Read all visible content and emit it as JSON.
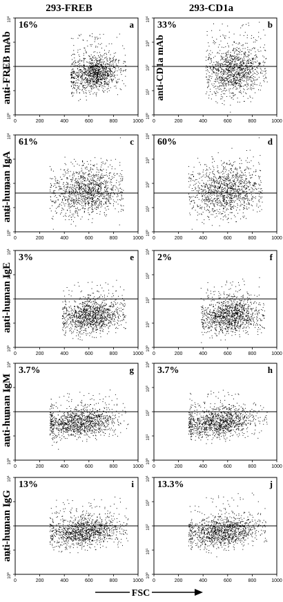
{
  "figure": {
    "column_titles": [
      "293-FREB",
      "293-CD1a"
    ],
    "row_labels": [
      "anti-FREB mAb",
      "anti-human IgA",
      "anti-human IgE",
      "anti-human IgM",
      "anti-human IgG"
    ],
    "x_axis_label": "FSC",
    "inner_label_b": "anti-CD1a mAb"
  },
  "chart_data": [
    {
      "type": "scatter",
      "panel": "a",
      "percent": "16%",
      "x_ticks": [
        "0",
        "200",
        "400",
        "600",
        "800",
        "1000"
      ],
      "y_ticks": [
        "0",
        "1",
        "2",
        "3",
        "4"
      ],
      "xlim": [
        0,
        1000
      ],
      "ylim_log10": [
        0,
        4
      ],
      "gate_log10": 2.0,
      "cloud": {
        "x_range": [
          450,
          900
        ],
        "center_x": 640,
        "center_log10": 1.7,
        "spread_log10": 0.35,
        "upper_tail_log10": 3.4
      }
    },
    {
      "type": "scatter",
      "panel": "b",
      "percent": "33%",
      "x_ticks": [
        "0",
        "200",
        "400",
        "600",
        "800",
        "1000"
      ],
      "y_ticks": [
        "0",
        "1",
        "2",
        "3",
        "4"
      ],
      "xlim": [
        0,
        1000
      ],
      "ylim_log10": [
        0,
        4
      ],
      "gate_log10": 2.0,
      "cloud": {
        "x_range": [
          420,
          920
        ],
        "center_x": 660,
        "center_log10": 1.8,
        "spread_log10": 0.5,
        "upper_tail_log10": 3.9
      }
    },
    {
      "type": "scatter",
      "panel": "c",
      "percent": "61%",
      "x_ticks": [
        "0",
        "200",
        "400",
        "600",
        "800",
        "1000"
      ],
      "y_ticks": [
        "0",
        "1",
        "2",
        "3",
        "4"
      ],
      "xlim": [
        0,
        1000
      ],
      "ylim_log10": [
        0,
        4
      ],
      "gate_log10": 1.6,
      "cloud": {
        "x_range": [
          280,
          880
        ],
        "center_x": 580,
        "center_log10": 1.65,
        "spread_log10": 0.5,
        "upper_tail_log10": 3.0
      }
    },
    {
      "type": "scatter",
      "panel": "d",
      "percent": "60%",
      "x_ticks": [
        "0",
        "200",
        "400",
        "600",
        "800",
        "1000"
      ],
      "y_ticks": [
        "0",
        "1",
        "2",
        "3",
        "4"
      ],
      "xlim": [
        0,
        1000
      ],
      "ylim_log10": [
        0,
        4
      ],
      "gate_log10": 1.6,
      "cloud": {
        "x_range": [
          280,
          880
        ],
        "center_x": 580,
        "center_log10": 1.65,
        "spread_log10": 0.5,
        "upper_tail_log10": 3.0
      }
    },
    {
      "type": "scatter",
      "panel": "e",
      "percent": "3%",
      "x_ticks": [
        "0",
        "200",
        "400",
        "600",
        "800",
        "1000"
      ],
      "y_ticks": [
        "0",
        "1",
        "2",
        "3",
        "4"
      ],
      "xlim": [
        0,
        1000
      ],
      "ylim_log10": [
        0,
        4
      ],
      "gate_log10": 2.0,
      "cloud": {
        "x_range": [
          380,
          900
        ],
        "center_x": 620,
        "center_log10": 1.3,
        "spread_log10": 0.35,
        "upper_tail_log10": 2.8
      }
    },
    {
      "type": "scatter",
      "panel": "f",
      "percent": "2%",
      "x_ticks": [
        "0",
        "200",
        "400",
        "600",
        "800",
        "1000"
      ],
      "y_ticks": [
        "0",
        "1",
        "2",
        "3",
        "4"
      ],
      "xlim": [
        0,
        1000
      ],
      "ylim_log10": [
        0,
        4
      ],
      "gate_log10": 2.0,
      "cloud": {
        "x_range": [
          380,
          900
        ],
        "center_x": 620,
        "center_log10": 1.3,
        "spread_log10": 0.35,
        "upper_tail_log10": 2.8
      }
    },
    {
      "type": "scatter",
      "panel": "g",
      "percent": "3.7%",
      "x_ticks": [
        "0",
        "200",
        "400",
        "600",
        "800",
        "1000"
      ],
      "y_ticks": [
        "0",
        "1",
        "2",
        "3",
        "4"
      ],
      "xlim": [
        0,
        1000
      ],
      "ylim_log10": [
        0,
        4
      ],
      "gate_log10": 2.0,
      "cloud": {
        "x_range": [
          280,
          920
        ],
        "center_x": 520,
        "center_log10": 1.55,
        "spread_log10": 0.3,
        "upper_tail_log10": 2.9
      }
    },
    {
      "type": "scatter",
      "panel": "h",
      "percent": "3.7%",
      "x_ticks": [
        "0",
        "200",
        "400",
        "600",
        "800",
        "1000"
      ],
      "y_ticks": [
        "0",
        "1",
        "2",
        "3",
        "4"
      ],
      "xlim": [
        0,
        1000
      ],
      "ylim_log10": [
        0,
        4
      ],
      "gate_log10": 2.0,
      "cloud": {
        "x_range": [
          280,
          920
        ],
        "center_x": 520,
        "center_log10": 1.55,
        "spread_log10": 0.3,
        "upper_tail_log10": 2.9
      }
    },
    {
      "type": "scatter",
      "panel": "i",
      "percent": "13%",
      "x_ticks": [
        "0",
        "200",
        "400",
        "600",
        "800",
        "1000"
      ],
      "y_ticks": [
        "0",
        "1",
        "2",
        "3",
        "4"
      ],
      "xlim": [
        0,
        1000
      ],
      "ylim_log10": [
        0,
        4
      ],
      "gate_log10": 2.0,
      "cloud": {
        "x_range": [
          280,
          920
        ],
        "center_x": 560,
        "center_log10": 1.75,
        "spread_log10": 0.3,
        "upper_tail_log10": 3.2
      }
    },
    {
      "type": "scatter",
      "panel": "j",
      "percent": "13.3%",
      "x_ticks": [
        "0",
        "200",
        "400",
        "600",
        "800",
        "1000"
      ],
      "y_ticks": [
        "0",
        "1",
        "2",
        "3",
        "4"
      ],
      "xlim": [
        0,
        1000
      ],
      "ylim_log10": [
        0,
        4
      ],
      "gate_log10": 2.0,
      "cloud": {
        "x_range": [
          280,
          920
        ],
        "center_x": 560,
        "center_log10": 1.75,
        "spread_log10": 0.3,
        "upper_tail_log10": 3.3
      }
    }
  ]
}
